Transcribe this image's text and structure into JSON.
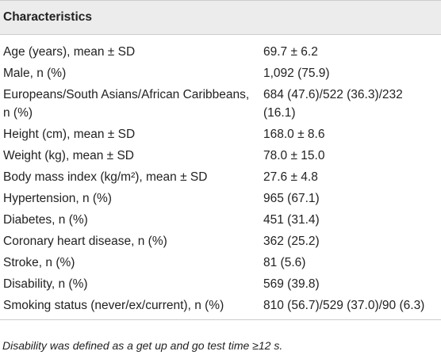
{
  "header": {
    "title": "Characteristics"
  },
  "table": {
    "rows": [
      [
        "Age (years), mean ± SD",
        "69.7 ± 6.2"
      ],
      [
        "Male, n (%)",
        "1,092 (75.9)"
      ],
      [
        "Europeans/South Asians/African Caribbeans, n (%)",
        "684 (47.6)/522 (36.3)/232 (16.1)"
      ],
      [
        "Height (cm), mean ± SD",
        "168.0 ± 8.6"
      ],
      [
        "Weight (kg), mean ± SD",
        "78.0 ± 15.0"
      ],
      [
        "Body mass index (kg/m²), mean ± SD",
        "27.6 ± 4.8"
      ],
      [
        "Hypertension, n (%)",
        "965 (67.1)"
      ],
      [
        "Diabetes, n (%)",
        "451 (31.4)"
      ],
      [
        "Coronary heart disease, n (%)",
        "362 (25.2)"
      ],
      [
        "Stroke, n (%)",
        "81 (5.6)"
      ],
      [
        "Disability, n (%)",
        "569 (39.8)"
      ],
      [
        "Smoking status (never/ex/current), n (%)",
        "810 (56.7)/529 (37.0)/90 (6.3)"
      ]
    ]
  },
  "footnote": "Disability was defined as a get up and go test time ≥12 s."
}
